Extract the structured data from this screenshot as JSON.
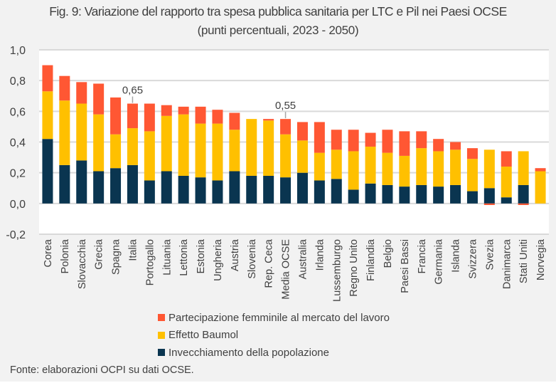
{
  "chart_data": {
    "type": "bar",
    "stacked": true,
    "title": "Fig. 9: Variazione del rapporto tra spesa pubblica sanitaria per LTC e Pil nei Paesi OCSE",
    "subtitle": "(punti percentuali, 2023 - 2050)",
    "xlabel": "",
    "ylabel": "",
    "ylim": [
      -0.2,
      1.0
    ],
    "yticks": [
      -0.2,
      0.0,
      0.2,
      0.4,
      0.6,
      0.8,
      1.0
    ],
    "ytick_labels": [
      "-0,2",
      "0,0",
      "0,2",
      "0,4",
      "0,6",
      "0,8",
      "1,0"
    ],
    "grid": true,
    "legend_position": "bottom",
    "categories": [
      "Corea",
      "Polonia",
      "Slovacchia",
      "Grecia",
      "Spagna",
      "Italia",
      "Portogallo",
      "Lituania",
      "Lettonia",
      "Estonia",
      "Ungheria",
      "Austria",
      "Slovenia",
      "Rep. Ceca",
      "Media OCSE",
      "Australia",
      "Irlanda",
      "Lussemburgo",
      "Regno Unito",
      "Finlandia",
      "Belgio",
      "Paesi Bassi",
      "Francia",
      "Germania",
      "Islanda",
      "Svizzera",
      "Svezia",
      "Danimarca",
      "Stati Uniti",
      "Norvegia"
    ],
    "series": [
      {
        "name": "Invecchiamento della popolazione",
        "color": "#0a3550",
        "values": [
          0.42,
          0.25,
          0.28,
          0.21,
          0.23,
          0.25,
          0.15,
          0.21,
          0.18,
          0.17,
          0.15,
          0.21,
          0.18,
          0.18,
          0.17,
          0.2,
          0.15,
          0.16,
          0.09,
          0.13,
          0.12,
          0.11,
          0.12,
          0.11,
          0.12,
          0.08,
          0.1,
          0.04,
          0.12,
          0.0
        ]
      },
      {
        "name": "Effetto Baumol",
        "color": "#ffc000",
        "values": [
          0.31,
          0.42,
          0.37,
          0.37,
          0.22,
          0.24,
          0.32,
          0.36,
          0.4,
          0.35,
          0.37,
          0.27,
          0.37,
          0.36,
          0.28,
          0.21,
          0.18,
          0.19,
          0.25,
          0.24,
          0.21,
          0.2,
          0.24,
          0.23,
          0.23,
          0.21,
          0.25,
          0.2,
          0.22,
          0.21
        ]
      },
      {
        "name": "Partecipazione femminile al mercato del lavoro",
        "color": "#ff5733",
        "values": [
          0.17,
          0.16,
          0.14,
          0.2,
          0.24,
          0.16,
          0.18,
          0.07,
          0.05,
          0.11,
          0.09,
          0.11,
          0.0,
          0.01,
          0.1,
          0.12,
          0.2,
          0.13,
          0.14,
          0.09,
          0.15,
          0.16,
          0.11,
          0.08,
          0.05,
          0.07,
          -0.01,
          0.1,
          -0.01,
          0.02
        ]
      }
    ],
    "annotations": [
      {
        "category": "Italia",
        "value": 0.65,
        "label": "0,65"
      },
      {
        "category": "Media OCSE",
        "value": 0.55,
        "label": "0,55"
      }
    ],
    "legend": [
      {
        "name": "Partecipazione femminile al mercato del lavoro",
        "color": "#ff5733"
      },
      {
        "name": "Effetto Baumol",
        "color": "#ffc000"
      },
      {
        "name": "Invecchiamento della popolazione",
        "color": "#0a3550"
      }
    ],
    "source": "Fonte: elaborazioni OCPI su dati OCSE."
  }
}
